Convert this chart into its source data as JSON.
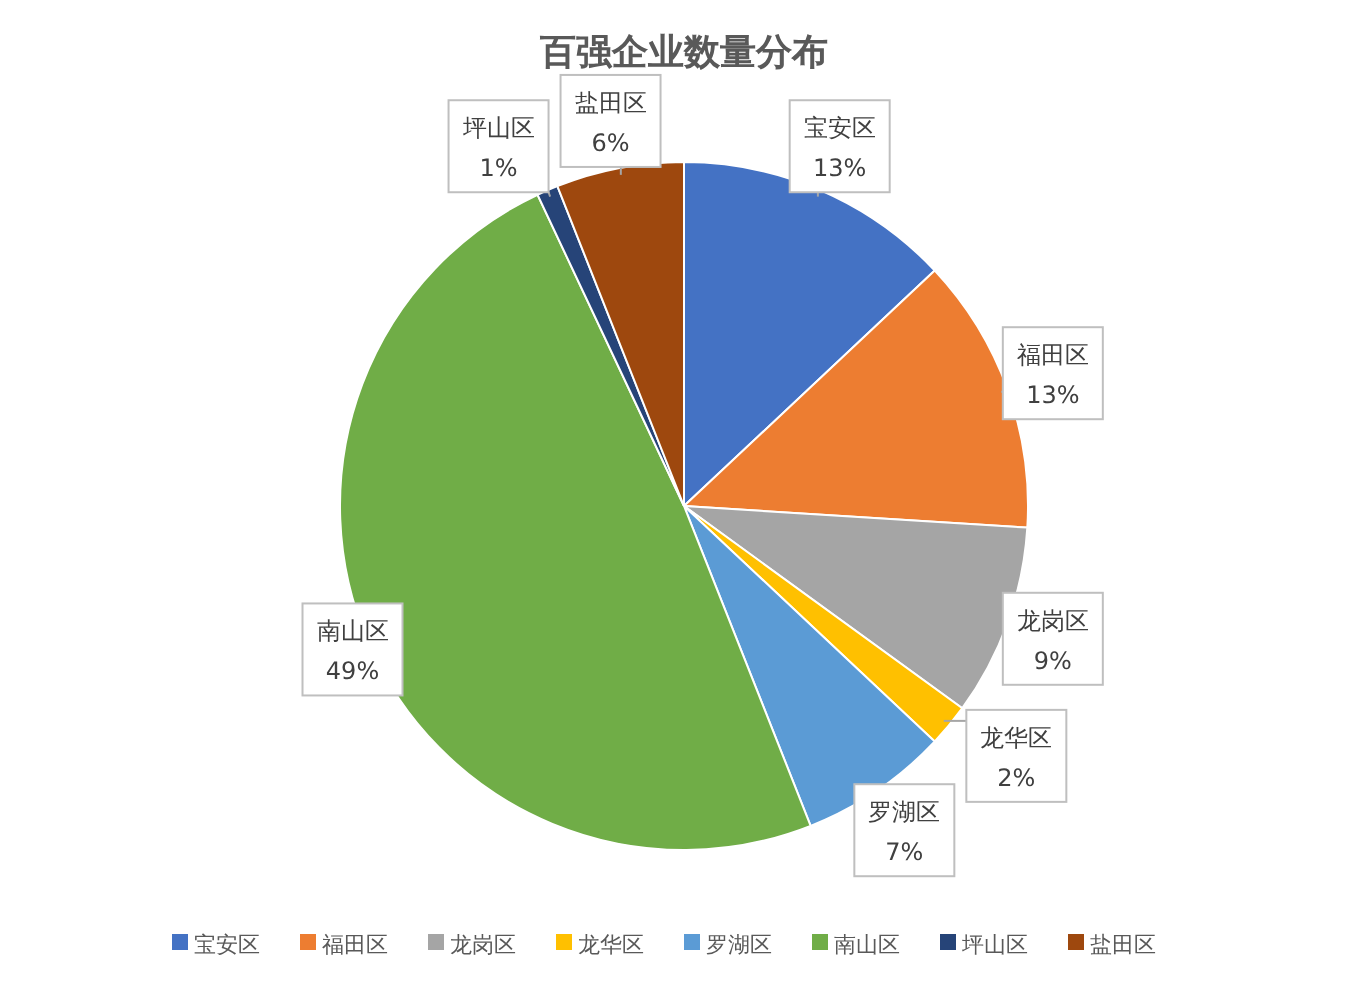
{
  "chart_data": {
    "type": "pie",
    "title": "百强企业数量分布",
    "categories": [
      "宝安区",
      "福田区",
      "龙岗区",
      "龙华区",
      "罗湖区",
      "南山区",
      "坪山区",
      "盐田区"
    ],
    "values": [
      13,
      13,
      9,
      2,
      7,
      49,
      1,
      6
    ],
    "colors": [
      "#4472c4",
      "#ed7d31",
      "#a5a5a5",
      "#ffc000",
      "#5b9bd5",
      "#70ad47",
      "#264478",
      "#9e480e"
    ],
    "value_labels": [
      "13%",
      "13%",
      "9%",
      "2%",
      "7%",
      "49%",
      "1%",
      "6%"
    ],
    "legend": "bottom"
  }
}
